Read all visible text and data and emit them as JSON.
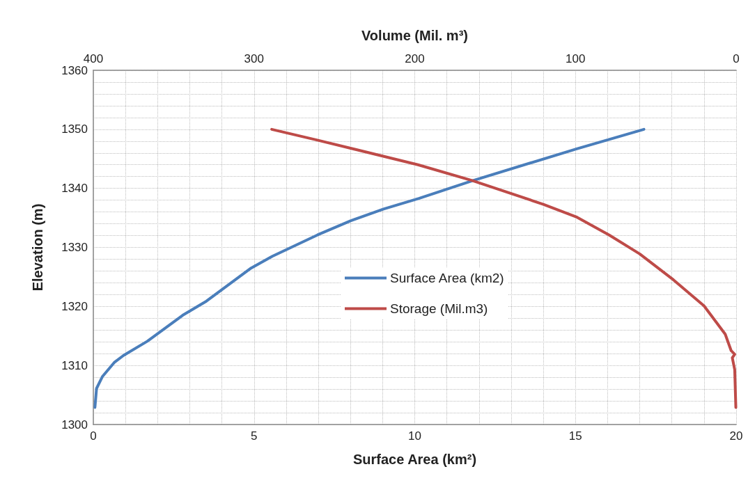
{
  "chart_data": {
    "type": "line",
    "xlabel": "Surface Area (km²)",
    "x2label": "Volume (Mil. m³)",
    "ylabel": "Elevation (m)",
    "xlim": [
      0,
      20
    ],
    "xticks": [
      0,
      {
        "value": 1,
        "label": null
      },
      {
        "value": 2,
        "label": null
      },
      {
        "value": 3,
        "label": null
      },
      {
        "value": 4,
        "label": null
      },
      5,
      {
        "value": 6,
        "label": null
      },
      {
        "value": 7,
        "label": null
      },
      {
        "value": 8,
        "label": null
      },
      {
        "value": 9,
        "label": null
      },
      10,
      {
        "value": 11,
        "label": null
      },
      {
        "value": 12,
        "label": null
      },
      {
        "value": 13,
        "label": null
      },
      {
        "value": 14,
        "label": null
      },
      15,
      {
        "value": 16,
        "label": null
      },
      {
        "value": 17,
        "label": null
      },
      {
        "value": 18,
        "label": null
      },
      {
        "value": 19,
        "label": null
      },
      20
    ],
    "x2lim": [
      400,
      0
    ],
    "x2ticks": [
      400,
      300,
      200,
      100,
      0
    ],
    "ylim": [
      1300,
      1360
    ],
    "yticks": [
      1300,
      {
        "value": 1302,
        "label": null
      },
      {
        "value": 1304,
        "label": null
      },
      {
        "value": 1306,
        "label": null
      },
      {
        "value": 1308,
        "label": null
      },
      1310,
      {
        "value": 1312,
        "label": null
      },
      {
        "value": 1314,
        "label": null
      },
      {
        "value": 1316,
        "label": null
      },
      {
        "value": 1318,
        "label": null
      },
      1320,
      {
        "value": 1322,
        "label": null
      },
      {
        "value": 1324,
        "label": null
      },
      {
        "value": 1326,
        "label": null
      },
      {
        "value": 1328,
        "label": null
      },
      1330,
      {
        "value": 1332,
        "label": null
      },
      {
        "value": 1334,
        "label": null
      },
      {
        "value": 1336,
        "label": null
      },
      {
        "value": 1338,
        "label": null
      },
      1340,
      {
        "value": 1342,
        "label": null
      },
      {
        "value": 1344,
        "label": null
      },
      {
        "value": 1346,
        "label": null
      },
      {
        "value": 1348,
        "label": null
      },
      1350,
      {
        "value": 1352,
        "label": null
      },
      {
        "value": 1354,
        "label": null
      },
      {
        "value": 1356,
        "label": null
      },
      {
        "value": 1358,
        "label": null
      },
      1360
    ],
    "grid": true,
    "legend": "center",
    "marker": "none",
    "line_style": "solid",
    "series": [
      {
        "name": "Surface Area (km2)",
        "color": "#4a7ebb",
        "x": [
          0.05,
          0.1,
          0.28,
          0.65,
          0.94,
          1.68,
          2.78,
          3.52,
          4.91,
          5.57,
          6.97,
          8.0,
          9.03,
          10.13,
          11.8,
          15.04,
          17.13
        ],
        "values": [
          1302.9,
          1306.1,
          1308.1,
          1310.5,
          1311.7,
          1314.1,
          1318.5,
          1320.9,
          1326.5,
          1328.5,
          1332.1,
          1334.5,
          1336.5,
          1338.3,
          1341.3,
          1346.7,
          1350.0
        ]
      },
      {
        "name": "Storage (Mil.m3)",
        "color": "#be4b48",
        "axis": "x2",
        "x": [
          289,
          261,
          198,
          164,
          120,
          99,
          79,
          60,
          39,
          20,
          6.8,
          3.1,
          0.9,
          2.4,
          0.9,
          0.2
        ],
        "values": [
          1350.0,
          1348.2,
          1344.0,
          1341.3,
          1337.3,
          1335.1,
          1332.1,
          1328.9,
          1324.5,
          1320.1,
          1315.3,
          1312.5,
          1311.9,
          1311.3,
          1309.3,
          1302.9
        ]
      }
    ]
  }
}
